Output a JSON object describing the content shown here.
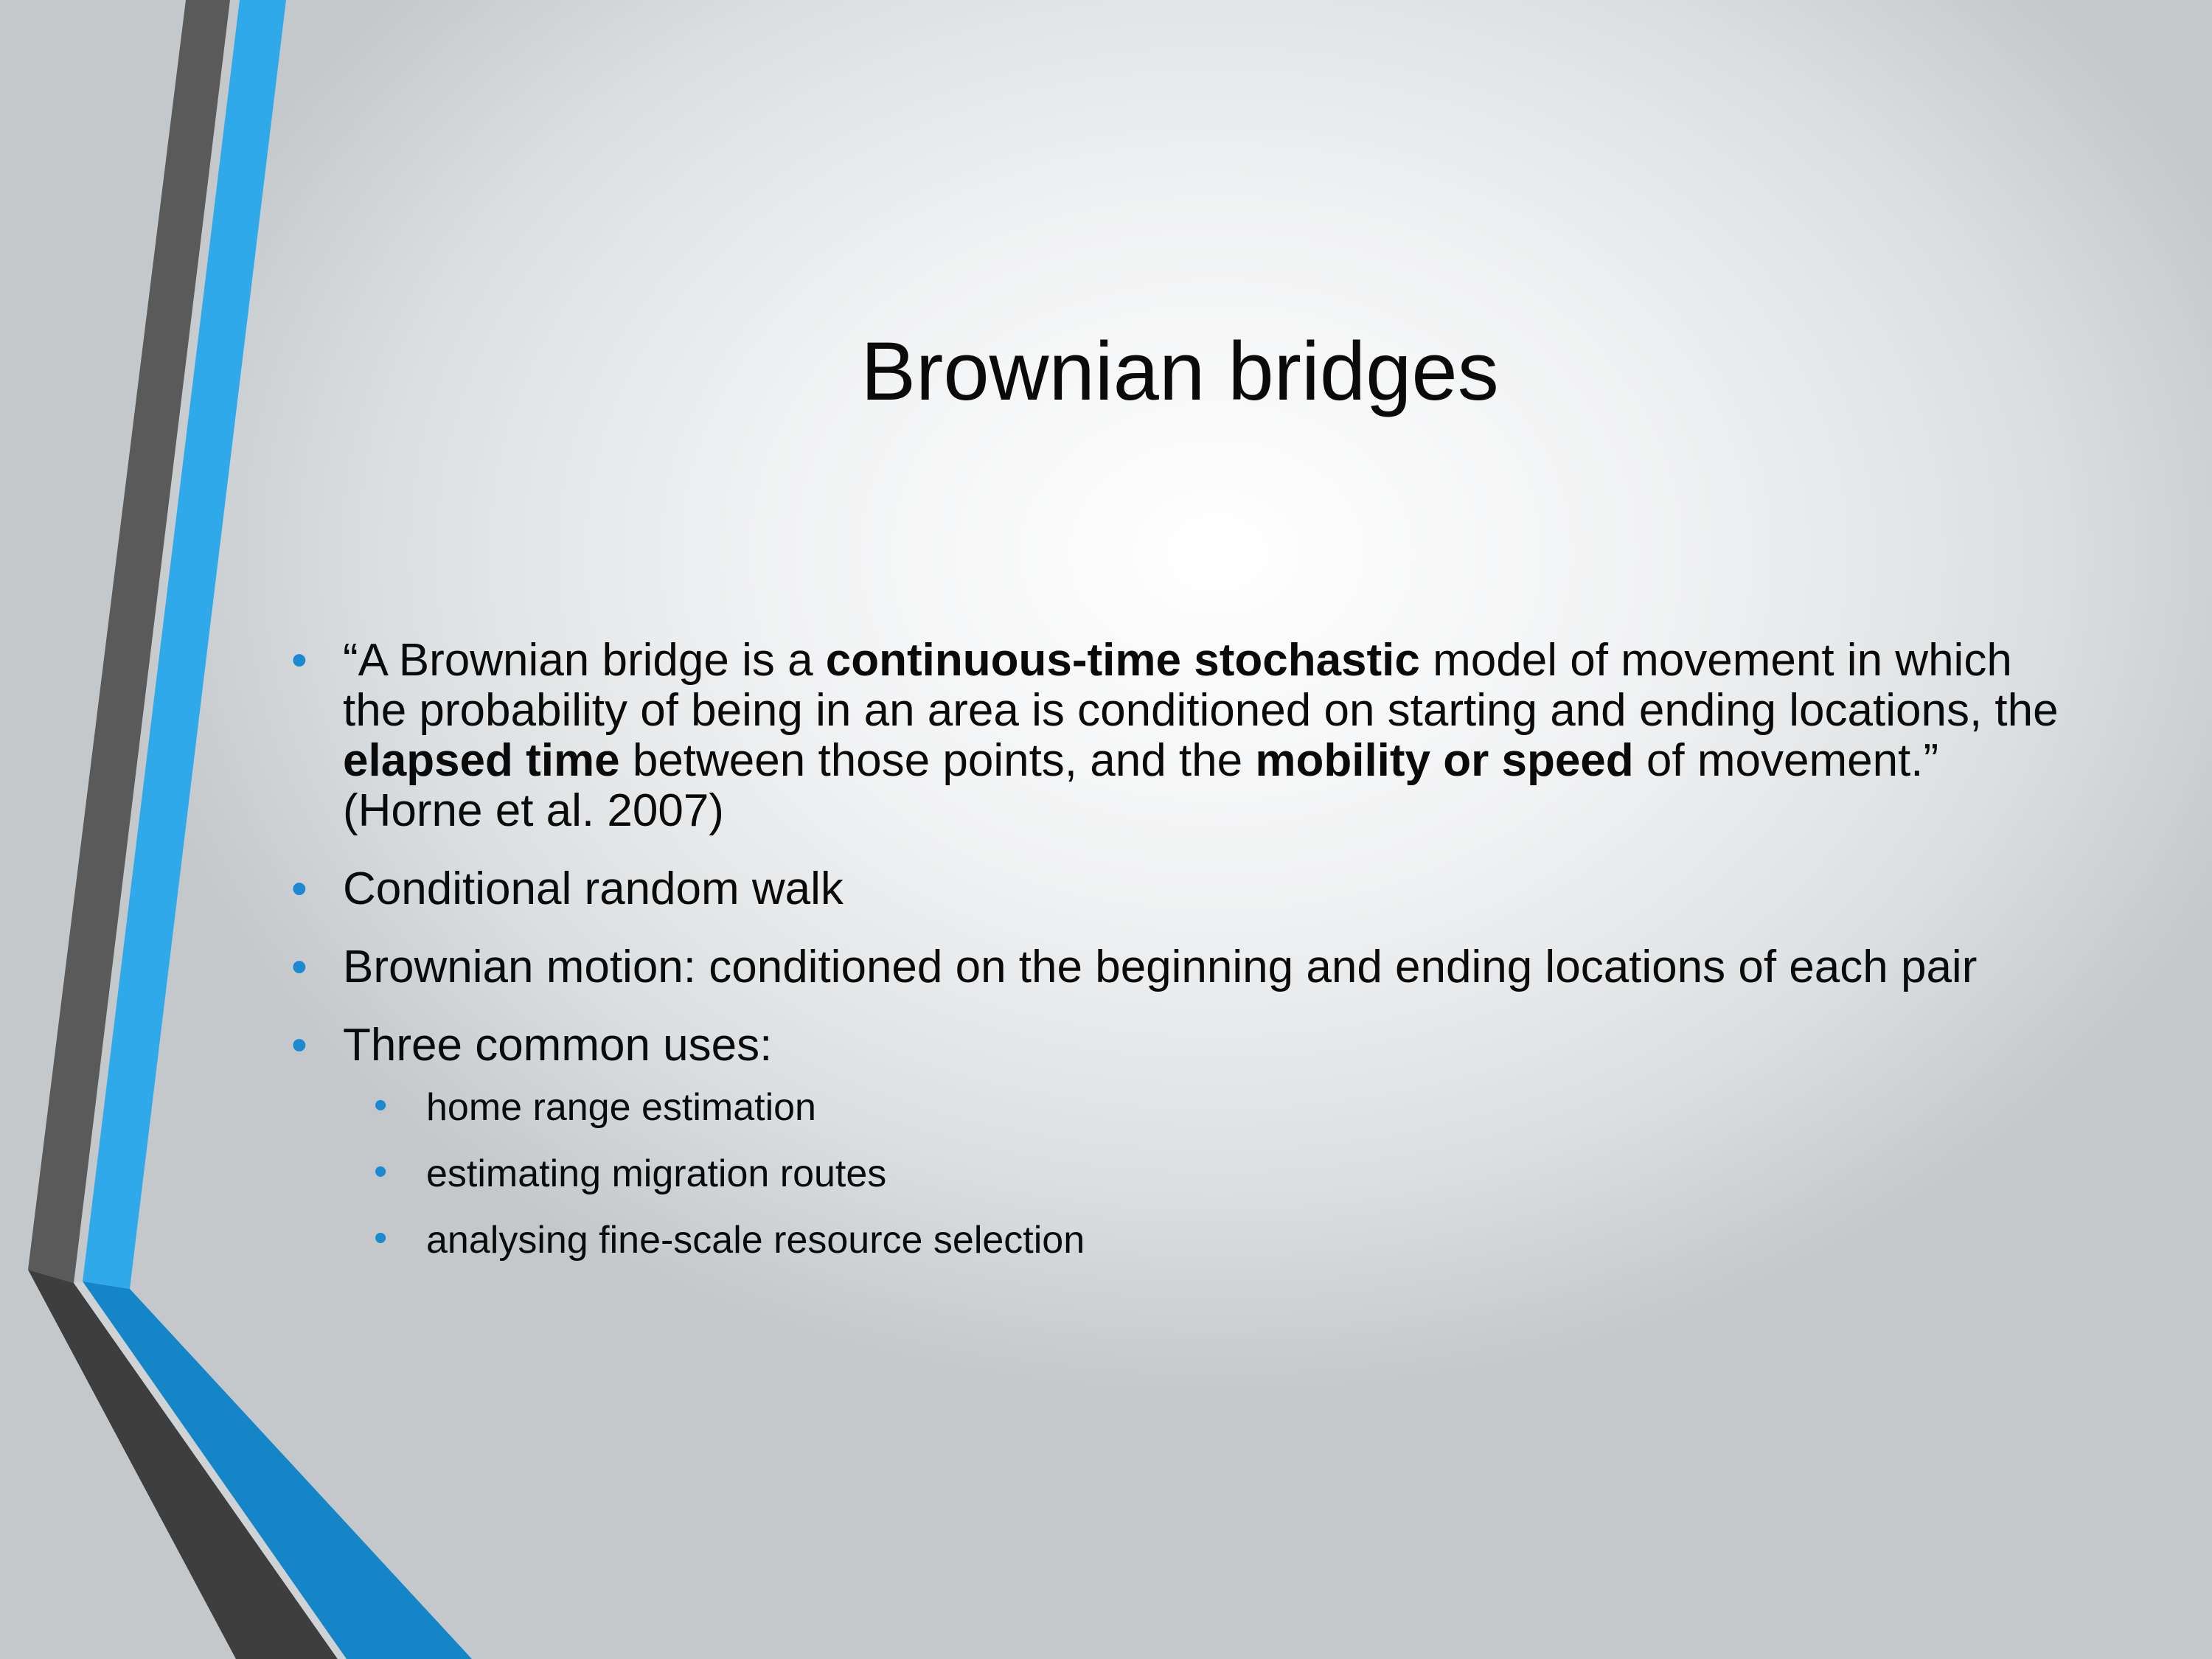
{
  "slide": {
    "title": "Brownian bridges",
    "bullets": [
      {
        "parts": [
          "“A Brownian bridge is a ",
          "continuous-time stochastic",
          " model of movement in which the probability of being in an area is conditioned on starting and ending locations, the ",
          "elapsed time",
          " between those points, and the ",
          "mobility or speed",
          " of movement.” (Horne et al. 2007)"
        ]
      },
      {
        "text": "Conditional random walk"
      },
      {
        "text": "Brownian motion: conditioned on the beginning and ending locations of each pair"
      },
      {
        "text": "Three common uses:",
        "sub_items": [
          "home range estimation",
          "estimating migration routes",
          "analysing fine-scale resource selection"
        ]
      }
    ],
    "bullet_glyph": "•",
    "colors": {
      "accent_blue": "#2fa9e9",
      "accent_blue_dark": "#1486c8",
      "stripe_gray": "#5a5a5a",
      "stripe_dark": "#3e3e3e",
      "bullet": "#1c8ad0"
    }
  }
}
